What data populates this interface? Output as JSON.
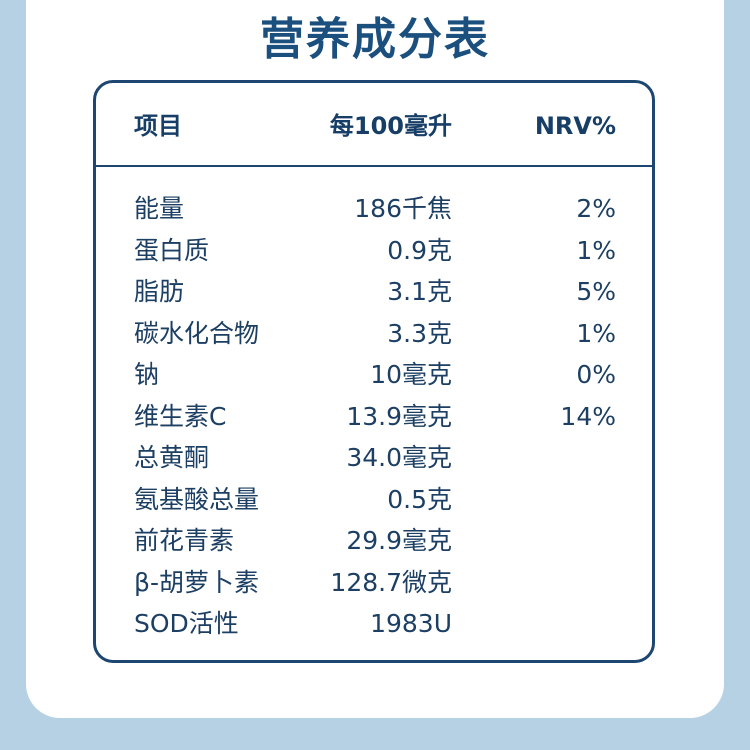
{
  "title": "营养成分表",
  "header": {
    "item": "项目",
    "amount": "每100毫升",
    "nrv": "NRV%"
  },
  "rows": [
    {
      "name": "能量",
      "amount": "186千焦",
      "nrv": "2%"
    },
    {
      "name": "蛋白质",
      "amount": "0.9克",
      "nrv": "1%"
    },
    {
      "name": "脂肪",
      "amount": "3.1克",
      "nrv": "5%"
    },
    {
      "name": "碳水化合物",
      "amount": "3.3克",
      "nrv": "1%"
    },
    {
      "name": "钠",
      "amount": "10毫克",
      "nrv": "0%"
    },
    {
      "name": "维生素C",
      "amount": "13.9毫克",
      "nrv": "14%"
    },
    {
      "name": "总黄酮",
      "amount": "34.0毫克",
      "nrv": ""
    },
    {
      "name": "氨基酸总量",
      "amount": "0.5克",
      "nrv": ""
    },
    {
      "name": "前花青素",
      "amount": "29.9毫克",
      "nrv": ""
    },
    {
      "name": "β-胡萝卜素",
      "amount": "128.7微克",
      "nrv": ""
    },
    {
      "name": "SOD活性",
      "amount": "1983U",
      "nrv": ""
    }
  ],
  "colors": {
    "background": "#b7d1e4",
    "card": "#ffffff",
    "title": "#1a4f7e",
    "border": "#1d4770",
    "text": "#1c3f63"
  }
}
